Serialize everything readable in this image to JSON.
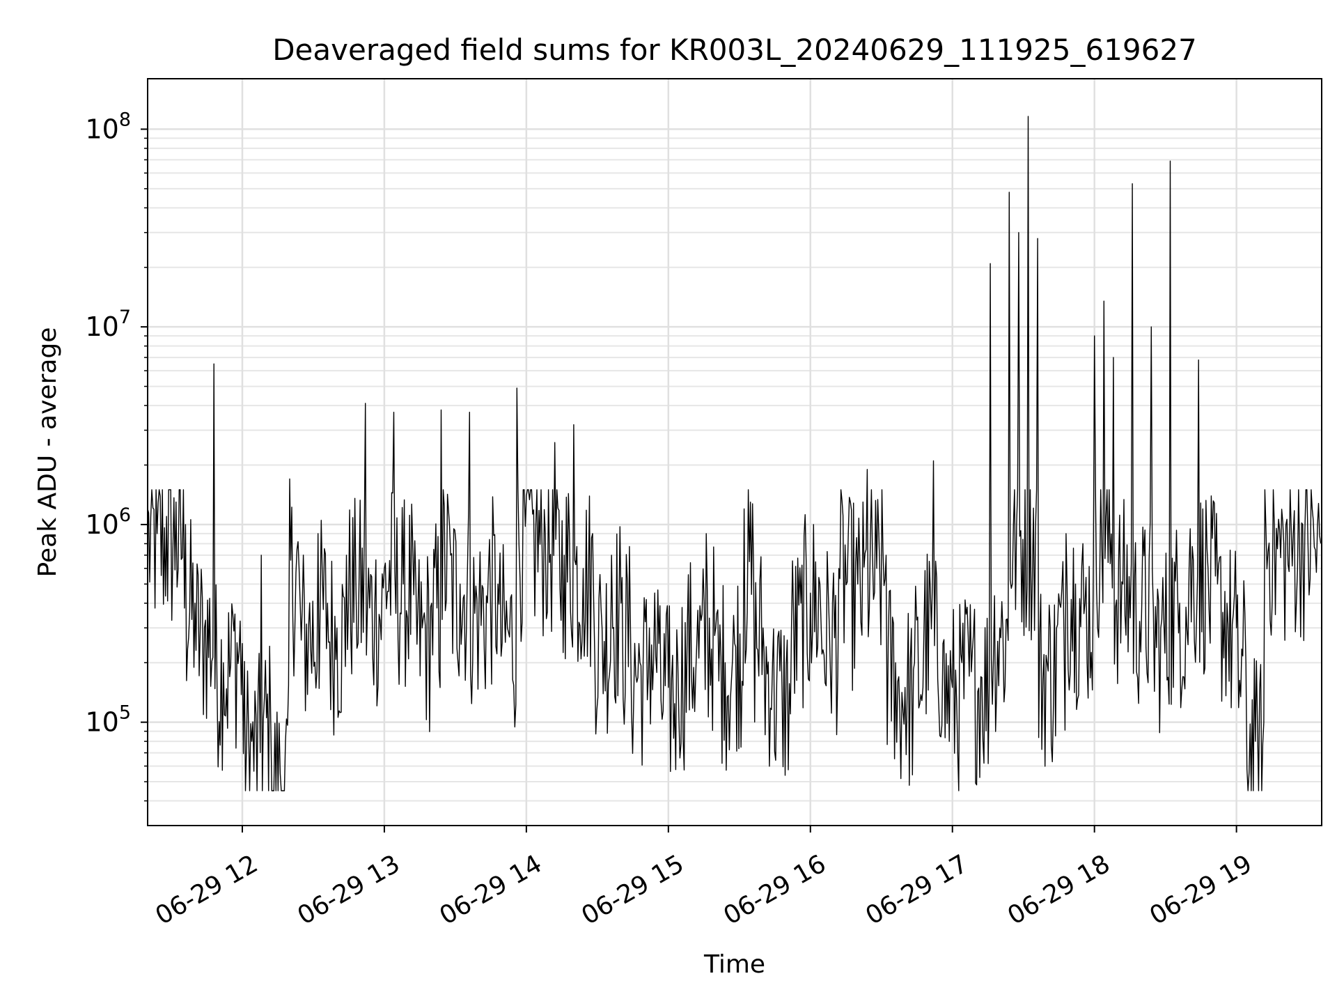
{
  "chart_data": {
    "type": "line",
    "title": "Deaveraged field sums for KR003L_20240629_111925_619627",
    "xlabel": "Time",
    "ylabel": "Peak ADU - average",
    "yscale": "log",
    "ylim": [
      30000,
      180000000
    ],
    "xlim": [
      "06-29 11:20",
      "06-29 19:36"
    ],
    "grid": true,
    "legend": "none",
    "line_color": "#000000",
    "x_ticks": [
      {
        "value": "06-29 12:00",
        "label": "06-29 12"
      },
      {
        "value": "06-29 13:00",
        "label": "06-29 13"
      },
      {
        "value": "06-29 14:00",
        "label": "06-29 14"
      },
      {
        "value": "06-29 15:00",
        "label": "06-29 15"
      },
      {
        "value": "06-29 16:00",
        "label": "06-29 16"
      },
      {
        "value": "06-29 17:00",
        "label": "06-29 17"
      },
      {
        "value": "06-29 18:00",
        "label": "06-29 18"
      },
      {
        "value": "06-29 19:00",
        "label": "06-29 19"
      }
    ],
    "y_ticks": [
      {
        "value": 100000,
        "base": "10",
        "exp": "5"
      },
      {
        "value": 1000000,
        "base": "10",
        "exp": "6"
      },
      {
        "value": 10000000,
        "base": "10",
        "exp": "7"
      },
      {
        "value": 100000000,
        "base": "10",
        "exp": "8"
      }
    ],
    "series": [
      {
        "x": [
          "06-29 11:20",
          "06-29 11:24",
          "06-29 11:28",
          "06-29 11:32",
          "06-29 11:36",
          "06-29 11:40",
          "06-29 11:44",
          "06-29 11:48",
          "06-29 11:52",
          "06-29 11:56",
          "06-29 12:00",
          "06-29 12:04",
          "06-29 12:08",
          "06-29 12:12",
          "06-29 12:16",
          "06-29 12:20",
          "06-29 12:24",
          "06-29 12:28",
          "06-29 12:32",
          "06-29 12:36",
          "06-29 12:40",
          "06-29 12:44",
          "06-29 12:48",
          "06-29 12:52",
          "06-29 12:56",
          "06-29 13:00",
          "06-29 13:04",
          "06-29 13:08",
          "06-29 13:12",
          "06-29 13:16",
          "06-29 13:20",
          "06-29 13:24",
          "06-29 13:28",
          "06-29 13:32",
          "06-29 13:36",
          "06-29 13:40",
          "06-29 13:44",
          "06-29 13:48",
          "06-29 13:52",
          "06-29 13:56",
          "06-29 14:00",
          "06-29 14:04",
          "06-29 14:08",
          "06-29 14:12",
          "06-29 14:16",
          "06-29 14:20",
          "06-29 14:24",
          "06-29 14:28",
          "06-29 14:32",
          "06-29 14:36",
          "06-29 14:40",
          "06-29 14:44",
          "06-29 14:48",
          "06-29 14:52",
          "06-29 14:56",
          "06-29 15:00",
          "06-29 15:04",
          "06-29 15:08",
          "06-29 15:12",
          "06-29 15:16",
          "06-29 15:20",
          "06-29 15:24",
          "06-29 15:28",
          "06-29 15:32",
          "06-29 15:36",
          "06-29 15:40",
          "06-29 15:44",
          "06-29 15:48",
          "06-29 15:52",
          "06-29 15:56",
          "06-29 16:00",
          "06-29 16:04",
          "06-29 16:08",
          "06-29 16:12",
          "06-29 16:16",
          "06-29 16:20",
          "06-29 16:24",
          "06-29 16:28",
          "06-29 16:32",
          "06-29 16:36",
          "06-29 16:40",
          "06-29 16:44",
          "06-29 16:48",
          "06-29 16:52",
          "06-29 16:56",
          "06-29 17:00",
          "06-29 17:04",
          "06-29 17:08",
          "06-29 17:12",
          "06-29 17:16",
          "06-29 17:20",
          "06-29 17:24",
          "06-29 17:28",
          "06-29 17:32",
          "06-29 17:36",
          "06-29 17:40",
          "06-29 17:44",
          "06-29 17:48",
          "06-29 17:52",
          "06-29 17:56",
          "06-29 18:00",
          "06-29 18:04",
          "06-29 18:08",
          "06-29 18:12",
          "06-29 18:16",
          "06-29 18:20",
          "06-29 18:24",
          "06-29 18:28",
          "06-29 18:32",
          "06-29 18:36",
          "06-29 18:40",
          "06-29 18:44",
          "06-29 18:48",
          "06-29 18:52",
          "06-29 18:56",
          "06-29 19:00",
          "06-29 19:04",
          "06-29 19:08",
          "06-29 19:12",
          "06-29 19:16",
          "06-29 19:20",
          "06-29 19:24",
          "06-29 19:28",
          "06-29 19:32",
          "06-29 19:36"
        ],
        "y": [
          1200000,
          900000,
          1100000,
          1300000,
          1000000,
          400000,
          300000,
          6500000,
          200000,
          350000,
          250000,
          80000,
          700000,
          100000,
          55000,
          1700000,
          600000,
          300000,
          900000,
          400000,
          300000,
          700000,
          500000,
          4100000,
          400000,
          600000,
          3700000,
          500000,
          800000,
          300000,
          400000,
          3800000,
          700000,
          500000,
          3700000,
          400000,
          600000,
          500000,
          300000,
          4900000,
          1400000,
          1000000,
          900000,
          2600000,
          700000,
          3200000,
          600000,
          900000,
          300000,
          700000,
          400000,
          300000,
          200000,
          300000,
          250000,
          150000,
          200000,
          300000,
          250000,
          900000,
          300000,
          200000,
          250000,
          1200000,
          600000,
          300000,
          200000,
          150000,
          300000,
          400000,
          450000,
          500000,
          300000,
          600000,
          900000,
          500000,
          1900000,
          600000,
          700000,
          200000,
          150000,
          200000,
          300000,
          2100000,
          250000,
          150000,
          200000,
          180000,
          170000,
          20900000,
          300000,
          48000000,
          30000000,
          116000000,
          28000000,
          200000,
          300000,
          900000,
          500000,
          400000,
          9000000,
          13500000,
          7000000,
          500000,
          53000000,
          400000,
          10000000,
          300000,
          69000000,
          400000,
          600000,
          6800000,
          600000,
          500000,
          400000,
          300000,
          200000,
          80000,
          1500000,
          1000000,
          800000,
          900000,
          1000000,
          1200000,
          800000
        ]
      }
    ]
  }
}
